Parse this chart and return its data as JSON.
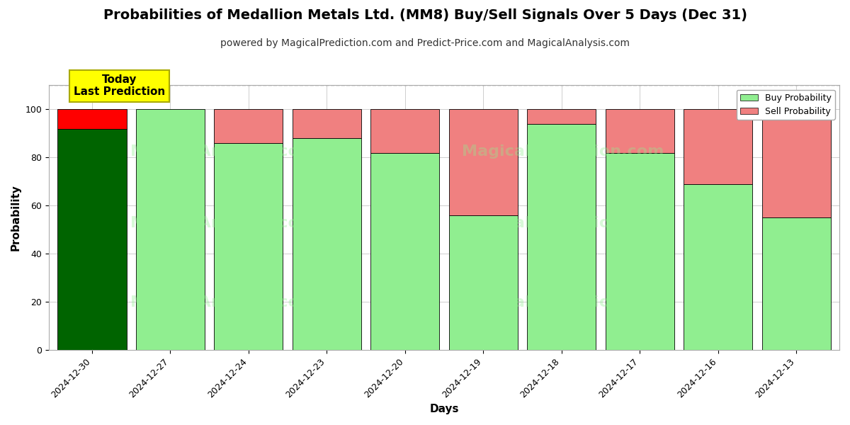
{
  "title": "Probabilities of Medallion Metals Ltd. (MM8) Buy/Sell Signals Over 5 Days (Dec 31)",
  "subtitle": "powered by MagicalPrediction.com and Predict-Price.com and MagicalAnalysis.com",
  "xlabel": "Days",
  "ylabel": "Probability",
  "categories": [
    "2024-12-30",
    "2024-12-27",
    "2024-12-24",
    "2024-12-23",
    "2024-12-20",
    "2024-12-19",
    "2024-12-18",
    "2024-12-17",
    "2024-12-16",
    "2024-12-13"
  ],
  "buy_values": [
    92,
    100,
    86,
    88,
    82,
    56,
    94,
    82,
    69,
    55
  ],
  "sell_values": [
    8,
    0,
    14,
    12,
    18,
    44,
    6,
    18,
    31,
    45
  ],
  "today_bar_index": 0,
  "buy_color_today": "#006400",
  "sell_color_today": "#FF0000",
  "buy_color_normal": "#90EE90",
  "sell_color_normal": "#F08080",
  "bar_edge_color": "#000000",
  "today_annotation_text": "Today\nLast Prediction",
  "today_annotation_bg": "#FFFF00",
  "today_annotation_text_color": "#000000",
  "ylim": [
    0,
    110
  ],
  "yticks": [
    0,
    20,
    40,
    60,
    80,
    100
  ],
  "dashed_line_y": 110,
  "watermark_texts": [
    "MagicalAnalysis.com",
    "MagicalPrediction.com"
  ],
  "legend_buy_label": "Buy Probability",
  "legend_sell_label": "Sell Probability",
  "bg_color": "#ffffff",
  "grid_color": "#bbbbbb",
  "title_fontsize": 14,
  "subtitle_fontsize": 10,
  "axis_label_fontsize": 11,
  "tick_fontsize": 9,
  "bar_width": 0.88
}
